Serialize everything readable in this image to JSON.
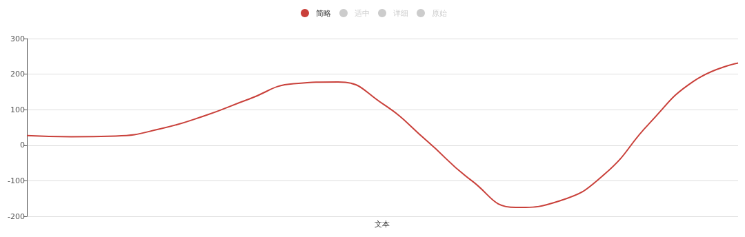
{
  "chart_data": {
    "type": "line",
    "xlabel": "文本",
    "categories": [
      null,
      null,
      null,
      null,
      null,
      null,
      null,
      null,
      null,
      null,
      null,
      null,
      null,
      null,
      null,
      null,
      null
    ],
    "series": [
      {
        "name": "简略",
        "color": "#c9403a",
        "values": [
          27,
          24,
          26,
          46,
          83,
          130,
          173,
          178,
          117,
          12,
          -99,
          -175,
          -156,
          -81,
          61,
          180,
          231
        ]
      },
      {
        "name": "适中",
        "color": "#cccccc",
        "values": [
          null,
          null,
          null,
          null,
          null,
          null,
          null,
          null,
          null,
          null,
          null,
          null,
          null,
          null,
          null,
          null,
          null
        ]
      },
      {
        "name": "详细",
        "color": "#cccccc",
        "values": [
          null,
          null,
          null,
          null,
          null,
          null,
          null,
          null,
          null,
          null,
          null,
          null,
          null,
          null,
          null,
          null,
          null
        ]
      },
      {
        "name": "原始",
        "color": "#cccccc",
        "values": [
          null,
          null,
          null,
          null,
          null,
          null,
          null,
          null,
          null,
          null,
          null,
          null,
          null,
          null,
          null,
          null,
          null
        ]
      }
    ],
    "ylim": [
      -200,
      300
    ],
    "yticks": [
      -200,
      -100,
      0,
      100,
      200,
      300
    ],
    "grid": "y",
    "legend": "top",
    "marker": "none",
    "line_style": "solid",
    "tick_labels": "y"
  }
}
